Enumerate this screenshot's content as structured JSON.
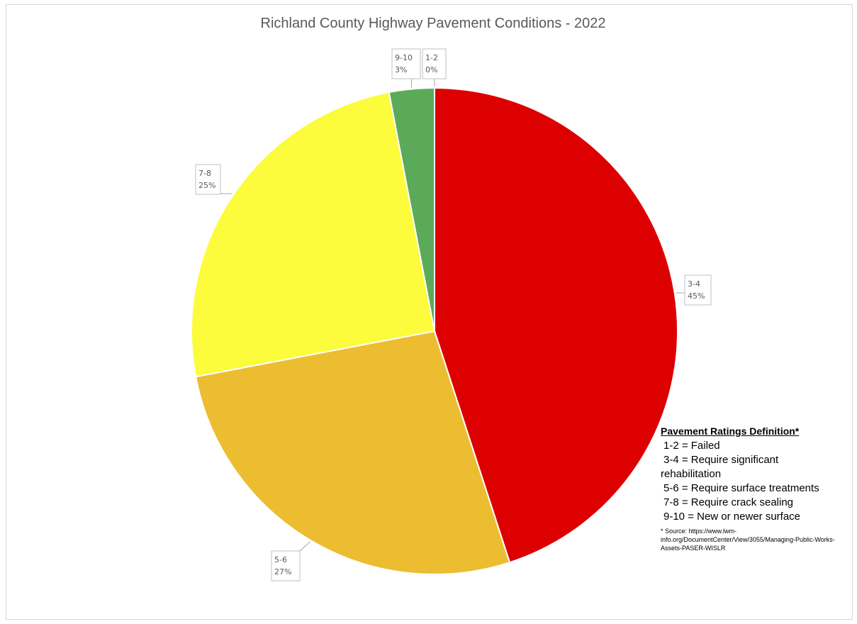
{
  "chart_data": {
    "type": "pie",
    "title": "Richland County Highway Pavement Conditions - 2022",
    "slices": [
      {
        "label": "1-2",
        "percent_label": "0%",
        "value": 0,
        "color": "#5aaa5a"
      },
      {
        "label": "3-4",
        "percent_label": "45%",
        "value": 45,
        "color": "#dc0000"
      },
      {
        "label": "5-6",
        "percent_label": "27%",
        "value": 27,
        "color": "#ecbd30"
      },
      {
        "label": "7-8",
        "percent_label": "25%",
        "value": 25,
        "color": "#fcfc3c"
      },
      {
        "label": "9-10",
        "percent_label": "3%",
        "value": 3,
        "color": "#5aaa5a"
      }
    ]
  },
  "legend": {
    "heading": "Pavement Ratings Definition*",
    "rows": [
      "1-2 = Failed",
      "3-4 = Require significant",
      "rehabilitation",
      "5-6 = Require surface treatments",
      "7-8 = Require crack sealing",
      "9-10 = New or newer surface"
    ],
    "source_note": "* Source: https://www.lwm-info.org/DocumentCenter/View/3055/Managing-Public-Works-Assets-PASER-WISLR"
  }
}
